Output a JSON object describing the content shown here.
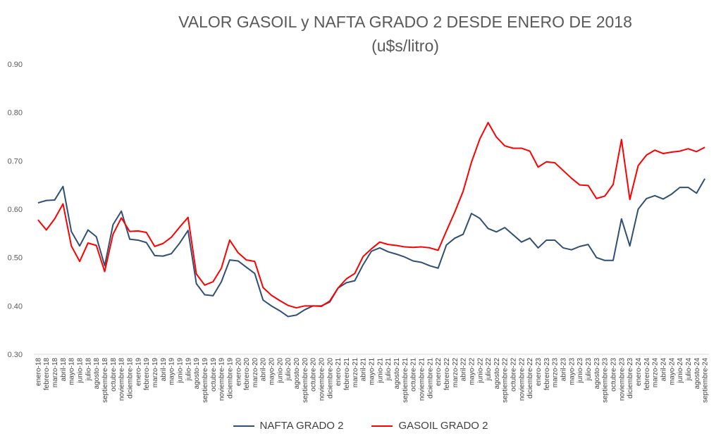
{
  "chart_data": {
    "type": "line",
    "title": "VALOR GASOIL y NAFTA GRADO 2 DESDE ENERO DE 2018",
    "subtitle": "(u$s/litro)",
    "xlabel": "",
    "ylabel": "",
    "ylim": [
      0.3,
      0.9
    ],
    "yticks": [
      "0.30",
      "0.40",
      "0.50",
      "0.60",
      "0.70",
      "0.80",
      "0.90"
    ],
    "grid": false,
    "legend_position": "bottom",
    "categories": [
      "enero-18",
      "febrero-18",
      "marzo-18",
      "abril-18",
      "mayo-18",
      "junio-18",
      "julio-18",
      "agosto-18",
      "septiembre-18",
      "octubre-18",
      "noviembre-18",
      "diciembre-18",
      "enero-19",
      "febrero-19",
      "marzo-19",
      "abril-19",
      "mayo-19",
      "junio-19",
      "julio-19",
      "agosto-19",
      "septiembre-19",
      "octubre-19",
      "noviembre-19",
      "diciembre-19",
      "enero-20",
      "febrero-20",
      "marzo-20",
      "abril-20",
      "mayo-20",
      "junio-20",
      "julio-20",
      "agosto-20",
      "septiembre-20",
      "octubre-20",
      "noviembre-20",
      "diciembre-20",
      "enero-21",
      "febrero-21",
      "marzo-21",
      "abril-21",
      "mayo-21",
      "junio-21",
      "julio-21",
      "agosto-21",
      "septiembre-21",
      "octubre-21",
      "noviembre-21",
      "diciembre-21",
      "enero-22",
      "febrero-22",
      "marzo-22",
      "abril-22",
      "mayo-22",
      "junio-22",
      "julio-22",
      "agosto-22",
      "septiembre-22",
      "octubre-22",
      "noviembre-22",
      "diciembre-22",
      "enero-23",
      "febrero-23",
      "marzo-23",
      "abril-23",
      "mayo-23",
      "junio-23",
      "julio-23",
      "agosto-23",
      "septiembre-23",
      "octubre-23",
      "noviembre-23",
      "diciembre-23",
      "enero-24",
      "febrero-24",
      "marzo-24",
      "abril-24",
      "mayo-24",
      "junio-24",
      "julio-24",
      "agosto-24",
      "septiembre-24"
    ],
    "series": [
      {
        "name": "NAFTA GRADO 2",
        "color": "#2f4f75",
        "values": [
          0.613,
          0.618,
          0.619,
          0.647,
          0.554,
          0.524,
          0.557,
          0.543,
          0.483,
          0.568,
          0.596,
          0.538,
          0.536,
          0.531,
          0.504,
          0.503,
          0.508,
          0.53,
          0.556,
          0.446,
          0.423,
          0.421,
          0.45,
          0.495,
          0.493,
          0.48,
          0.467,
          0.412,
          0.4,
          0.39,
          0.378,
          0.381,
          0.392,
          0.4,
          0.4,
          0.408,
          0.437,
          0.448,
          0.452,
          0.485,
          0.513,
          0.52,
          0.512,
          0.507,
          0.501,
          0.493,
          0.49,
          0.483,
          0.478,
          0.526,
          0.54,
          0.548,
          0.591,
          0.581,
          0.56,
          0.553,
          0.562,
          0.547,
          0.532,
          0.54,
          0.52,
          0.536,
          0.536,
          0.52,
          0.516,
          0.523,
          0.527,
          0.5,
          0.494,
          0.494,
          0.58,
          0.524,
          0.6,
          0.622,
          0.628,
          0.621,
          0.631,
          0.645,
          0.645,
          0.633,
          0.663
        ]
      },
      {
        "name": "GASOIL GRADO 2",
        "color": "#ff0000",
        "values": [
          0.578,
          0.557,
          0.58,
          0.611,
          0.524,
          0.492,
          0.53,
          0.525,
          0.471,
          0.548,
          0.582,
          0.554,
          0.555,
          0.552,
          0.523,
          0.529,
          0.542,
          0.563,
          0.583,
          0.466,
          0.443,
          0.45,
          0.478,
          0.536,
          0.51,
          0.495,
          0.492,
          0.438,
          0.422,
          0.411,
          0.401,
          0.396,
          0.4,
          0.4,
          0.399,
          0.41,
          0.437,
          0.456,
          0.467,
          0.502,
          0.518,
          0.532,
          0.527,
          0.525,
          0.522,
          0.521,
          0.522,
          0.52,
          0.515,
          0.555,
          0.594,
          0.637,
          0.697,
          0.745,
          0.779,
          0.749,
          0.731,
          0.726,
          0.726,
          0.72,
          0.687,
          0.698,
          0.696,
          0.68,
          0.664,
          0.65,
          0.649,
          0.622,
          0.627,
          0.651,
          0.744,
          0.62,
          0.69,
          0.712,
          0.722,
          0.715,
          0.718,
          0.72,
          0.725,
          0.719,
          0.728
        ]
      }
    ]
  }
}
